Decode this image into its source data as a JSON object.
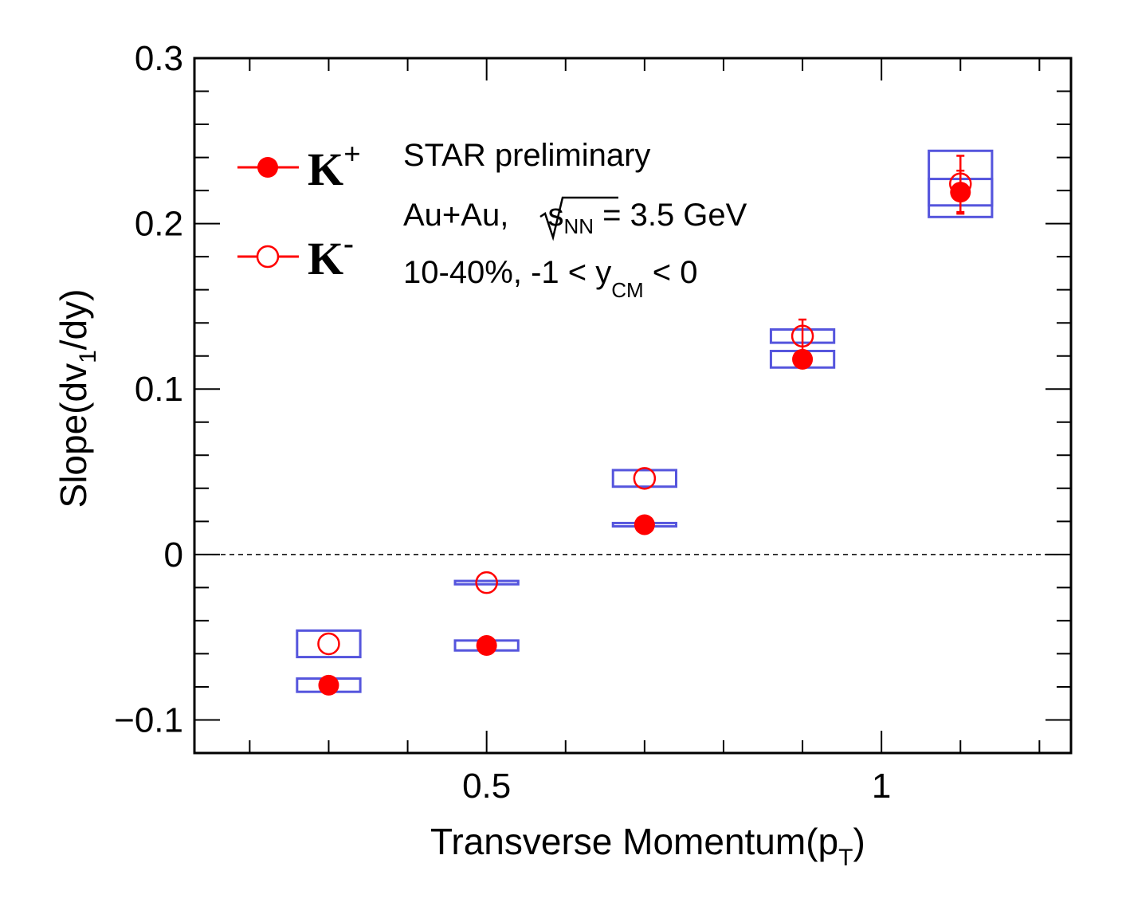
{
  "chart_data": {
    "type": "scatter",
    "xlabel": {
      "main": "Transverse Momentum(p",
      "sub": "T",
      "close": ")"
    },
    "ylabel": {
      "main": "Slope(dv",
      "sub": "1",
      "close": "/dy)"
    },
    "xlim": [
      0.13,
      1.24
    ],
    "ylim": [
      -0.12,
      0.3
    ],
    "x_ticks": [
      0.5,
      1
    ],
    "x_tick_labels": [
      "0.5",
      "1"
    ],
    "y_ticks": [
      -0.1,
      0,
      0.1,
      0.2,
      0.3
    ],
    "y_tick_labels": [
      "−0.1",
      "0",
      "0.1",
      "0.2",
      "0.3"
    ],
    "reference_line": {
      "y": 0,
      "style": "dashed"
    },
    "annotations": {
      "line1": "STAR preliminary",
      "line2_prefix": "Au+Au, ",
      "line2_radicand": "s",
      "line2_radicand_sub": "NN",
      "line2_suffix": " = 3.5 GeV",
      "line3_prefix": "10-40%, -1 < y",
      "line3_sub": "CM",
      "line3_suffix": " < 0"
    },
    "legend_placement": "top-left",
    "series": [
      {
        "name": "K",
        "name_sup": "+",
        "marker": "filled-circle",
        "color": "#ff0000",
        "syst_color": "#5555dd",
        "x": [
          0.3,
          0.5,
          0.7,
          0.9,
          1.1
        ],
        "y": [
          -0.079,
          -0.055,
          0.018,
          0.118,
          0.219
        ],
        "stat_err": [
          0.002,
          0.002,
          0.002,
          0.004,
          0.013
        ],
        "syst_err": [
          0.004,
          0.003,
          0.001,
          0.005,
          0.008
        ]
      },
      {
        "name": "K",
        "name_sup": "-",
        "marker": "open-circle",
        "color": "#ff0000",
        "syst_color": "#5555dd",
        "x": [
          0.3,
          0.5,
          0.7,
          0.9,
          1.1
        ],
        "y": [
          -0.054,
          -0.017,
          0.046,
          0.132,
          0.224
        ],
        "stat_err": [
          0.003,
          0.002,
          0.003,
          0.01,
          0.017
        ],
        "syst_err": [
          0.008,
          0.001,
          0.005,
          0.004,
          0.02
        ]
      }
    ]
  }
}
